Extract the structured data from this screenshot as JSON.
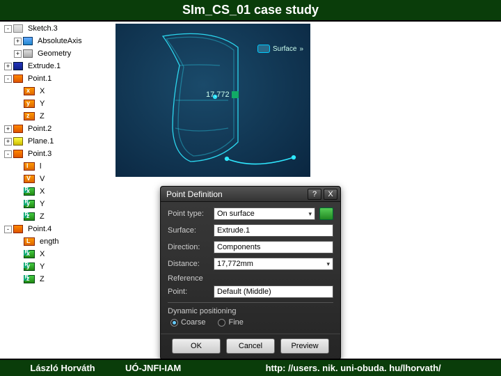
{
  "header": {
    "title": "SIm_CS_01 case study"
  },
  "footer": {
    "author": "László Horváth",
    "org": "UÓ-JNFI-IAM",
    "url": "http: //users. nik. uni-obuda. hu/lhorvath/"
  },
  "tree": {
    "items": [
      {
        "indent": 0,
        "toggle": "-",
        "icon": "ic-sketch",
        "label": "Sketch.3"
      },
      {
        "indent": 1,
        "toggle": "+",
        "icon": "ic-axis",
        "label": "AbsoluteAxis"
      },
      {
        "indent": 1,
        "toggle": "+",
        "icon": "ic-geom",
        "label": "Geometry"
      },
      {
        "indent": 0,
        "toggle": "+",
        "icon": "ic-extrude",
        "label": "Extrude.1"
      },
      {
        "indent": 0,
        "toggle": "-",
        "icon": "ic-point",
        "label": "Point.1"
      },
      {
        "indent": 1,
        "toggle": "",
        "icon": "ic-param",
        "let": "x",
        "label": "X"
      },
      {
        "indent": 1,
        "toggle": "",
        "icon": "ic-param",
        "let": "y",
        "label": "Y"
      },
      {
        "indent": 1,
        "toggle": "",
        "icon": "ic-param",
        "let": "z",
        "label": "Z"
      },
      {
        "indent": 0,
        "toggle": "+",
        "icon": "ic-point",
        "label": "Point.2"
      },
      {
        "indent": 0,
        "toggle": "+",
        "icon": "ic-plane",
        "label": "Plane.1"
      },
      {
        "indent": 0,
        "toggle": "-",
        "icon": "ic-point",
        "label": "Point.3"
      },
      {
        "indent": 1,
        "toggle": "",
        "icon": "ic-param",
        "let": "l",
        "label": "l"
      },
      {
        "indent": 1,
        "toggle": "",
        "icon": "ic-param",
        "let": "V",
        "label": "V"
      },
      {
        "indent": 1,
        "toggle": "",
        "icon": "ic-param green",
        "let": "x",
        "label": "X"
      },
      {
        "indent": 1,
        "toggle": "",
        "icon": "ic-param green",
        "let": "y",
        "label": "Y"
      },
      {
        "indent": 1,
        "toggle": "",
        "icon": "ic-param green",
        "let": "z",
        "label": "Z"
      },
      {
        "indent": 0,
        "toggle": "-",
        "icon": "ic-point",
        "label": "Point.4"
      },
      {
        "indent": 1,
        "toggle": "",
        "icon": "ic-param",
        "let": "L",
        "label": "ength"
      },
      {
        "indent": 1,
        "toggle": "",
        "icon": "ic-param green",
        "let": "x",
        "label": "X"
      },
      {
        "indent": 1,
        "toggle": "",
        "icon": "ic-param green",
        "let": "y",
        "label": "Y"
      },
      {
        "indent": 1,
        "toggle": "",
        "icon": "ic-param green",
        "let": "z",
        "label": "Z"
      }
    ]
  },
  "viewport": {
    "surface_label": "Surface",
    "dimension": "17.772",
    "surface_stroke": "#2fe8ff",
    "bg_inner": "#1a4a6a",
    "bg_outer": "#0a2640"
  },
  "dialog": {
    "title": "Point Definition",
    "help": "?",
    "close": "X",
    "rows": {
      "point_type_label": "Point type:",
      "point_type_value": "On surface",
      "surface_label": "Surface:",
      "surface_value": "Extrude.1",
      "direction_label": "Direction:",
      "direction_value": "Components",
      "distance_label": "Distance:",
      "distance_value": "17,772mm",
      "reference_header": "Reference",
      "point_label": "Point:",
      "point_value": "Default (Middle)",
      "dyn_header": "Dynamic positioning",
      "radio_coarse": "Coarse",
      "radio_fine": "Fine"
    },
    "buttons": {
      "ok": "OK",
      "cancel": "Cancel",
      "preview": "Preview"
    }
  }
}
